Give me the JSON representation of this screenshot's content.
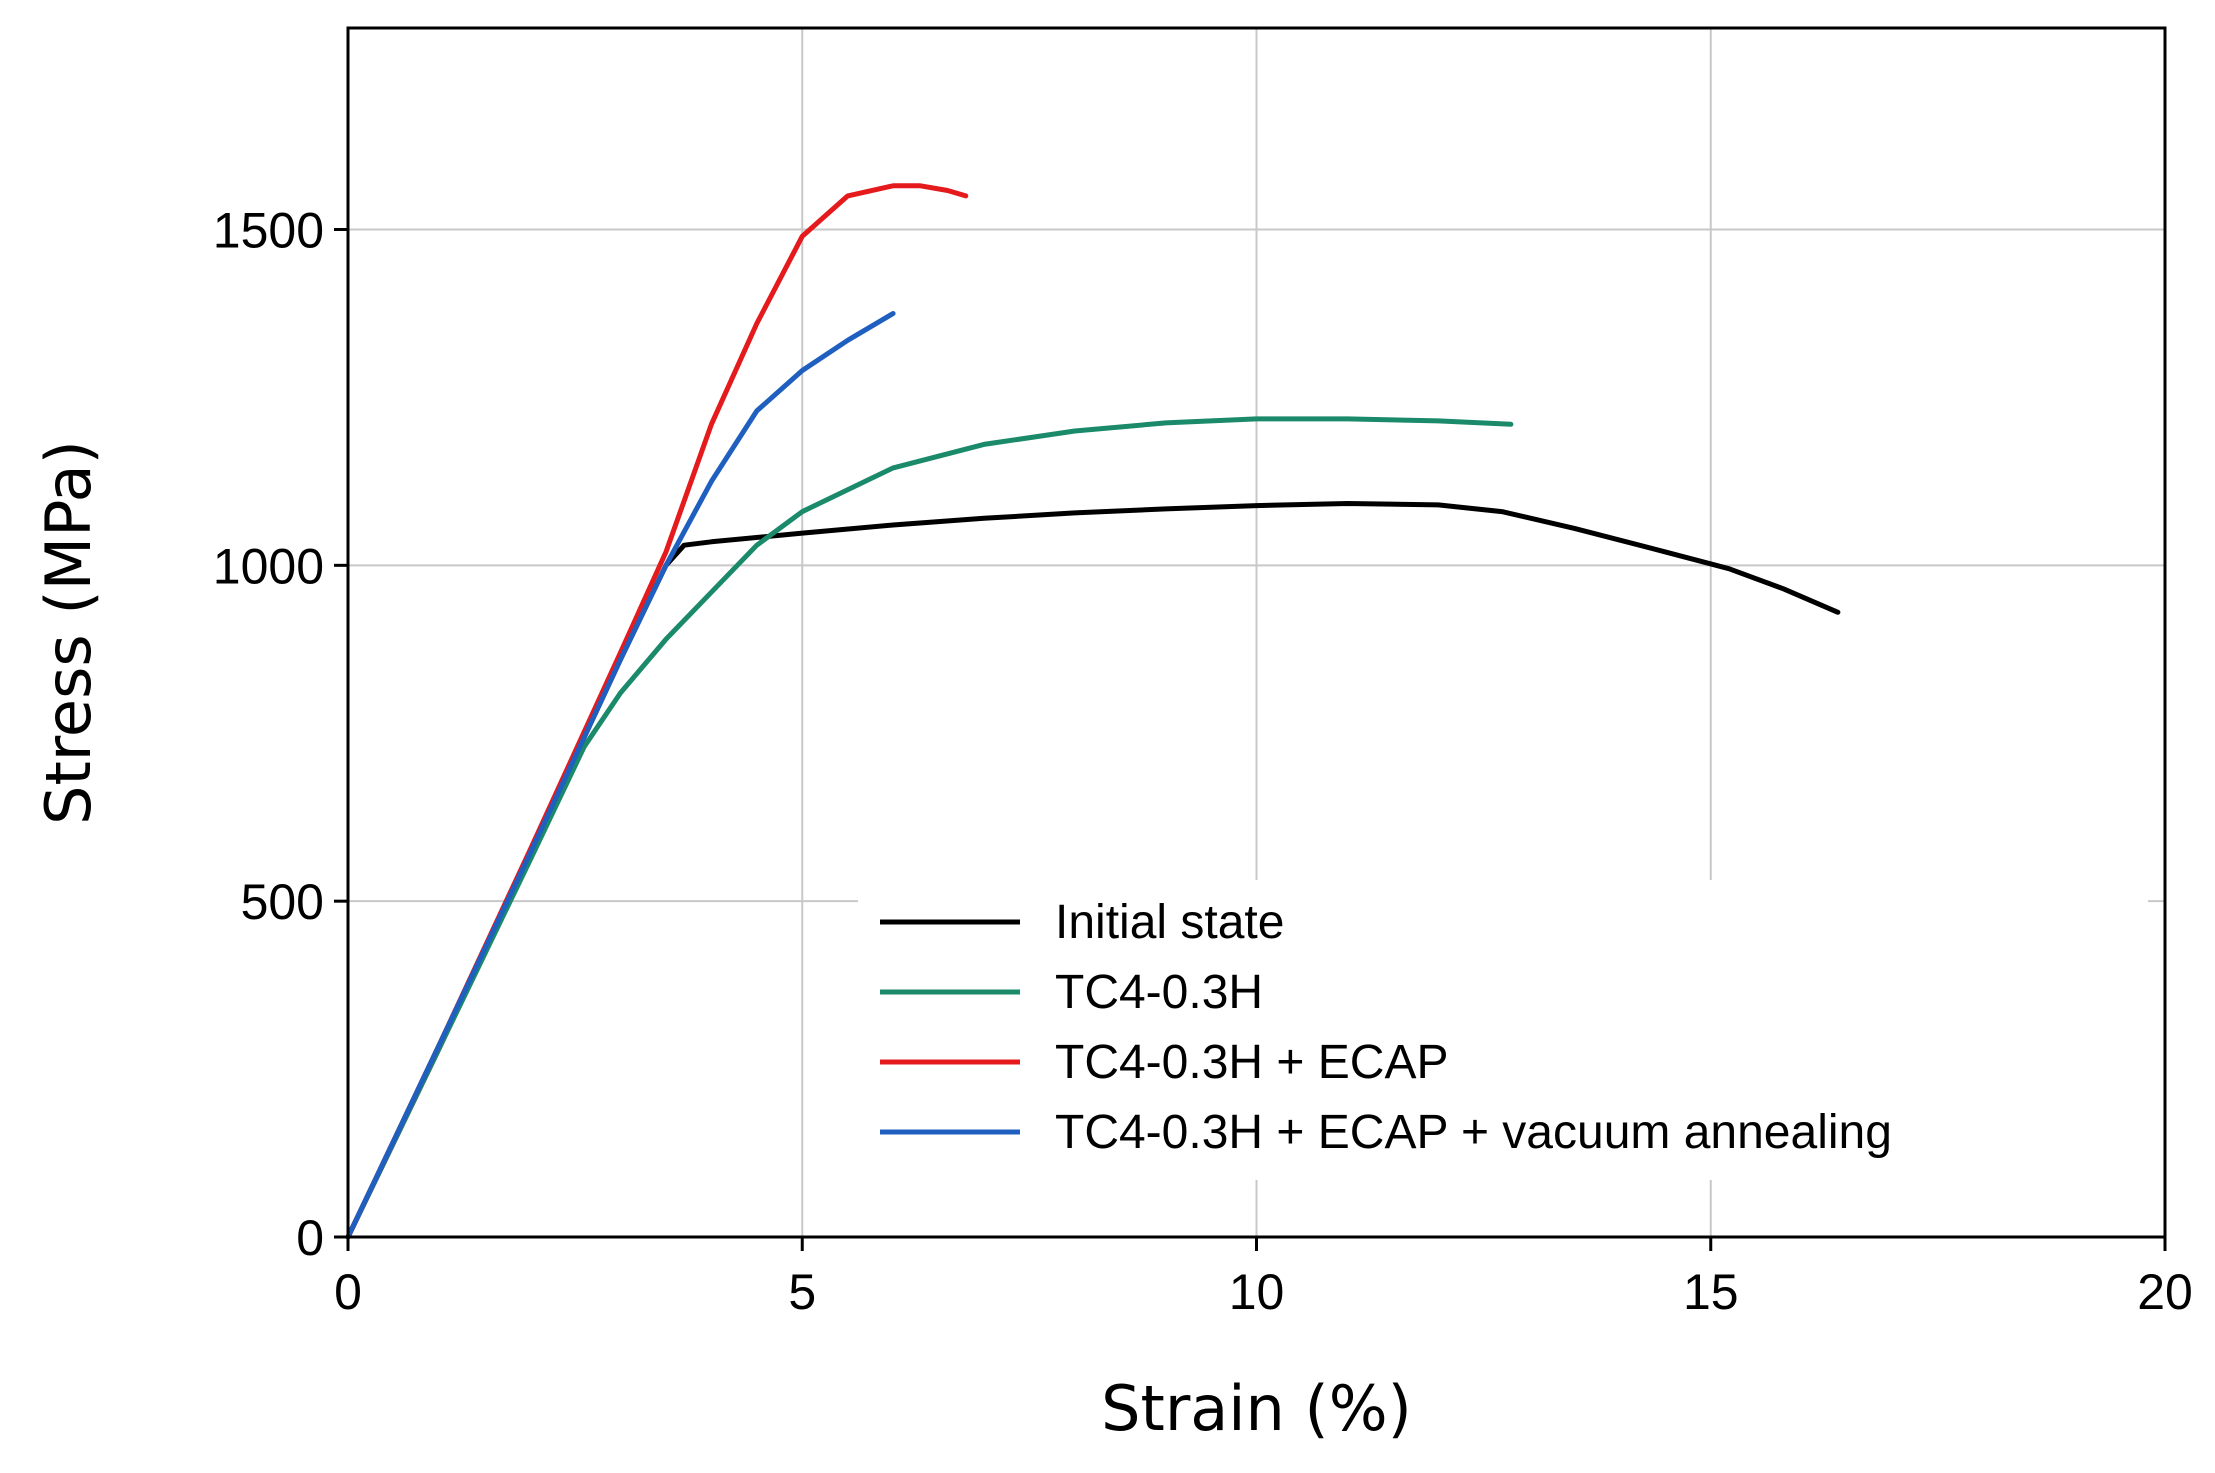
{
  "chart_data": {
    "type": "line",
    "xlabel": "Strain (%)",
    "ylabel": "Stress (MPa)",
    "xlim": [
      0,
      20
    ],
    "ylim": [
      0,
      1800
    ],
    "xticks": [
      "0",
      "5",
      "10",
      "15",
      "20"
    ],
    "yticks": [
      "0",
      "500",
      "1000",
      "1500"
    ],
    "grid": true,
    "legend_position": "bottom-right",
    "series": [
      {
        "name": "Initial state",
        "color": "#000000",
        "points": [
          [
            0,
            0
          ],
          [
            1,
            280
          ],
          [
            2,
            570
          ],
          [
            3,
            860
          ],
          [
            3.5,
            1000
          ],
          [
            3.7,
            1030
          ],
          [
            4,
            1035
          ],
          [
            5,
            1048
          ],
          [
            6,
            1060
          ],
          [
            7,
            1070
          ],
          [
            8,
            1078
          ],
          [
            9,
            1084
          ],
          [
            10,
            1089
          ],
          [
            11,
            1092
          ],
          [
            12,
            1090
          ],
          [
            12.7,
            1080
          ],
          [
            13.5,
            1055
          ],
          [
            14.5,
            1020
          ],
          [
            15.2,
            995
          ],
          [
            15.8,
            965
          ],
          [
            16.4,
            930
          ]
        ]
      },
      {
        "name": "TC4-0.3H",
        "color": "#1a8a6a",
        "points": [
          [
            0,
            0
          ],
          [
            1,
            280
          ],
          [
            2,
            560
          ],
          [
            2.6,
            730
          ],
          [
            3,
            810
          ],
          [
            3.5,
            890
          ],
          [
            4,
            960
          ],
          [
            4.5,
            1030
          ],
          [
            5,
            1080
          ],
          [
            6,
            1145
          ],
          [
            7,
            1180
          ],
          [
            8,
            1200
          ],
          [
            9,
            1212
          ],
          [
            10,
            1218
          ],
          [
            11,
            1218
          ],
          [
            12,
            1215
          ],
          [
            12.8,
            1210
          ]
        ]
      },
      {
        "name": "TC4-0.3H + ECAP",
        "color": "#e41a1c",
        "points": [
          [
            0,
            0
          ],
          [
            1,
            285
          ],
          [
            2,
            575
          ],
          [
            3,
            870
          ],
          [
            3.5,
            1020
          ],
          [
            4,
            1210
          ],
          [
            4.5,
            1360
          ],
          [
            5,
            1490
          ],
          [
            5.5,
            1550
          ],
          [
            6,
            1565
          ],
          [
            6.3,
            1565
          ],
          [
            6.6,
            1558
          ],
          [
            6.8,
            1550
          ]
        ]
      },
      {
        "name": "TC4-0.3H + ECAP + vacuum annealing",
        "color": "#1f5fbf",
        "points": [
          [
            0,
            0
          ],
          [
            1,
            285
          ],
          [
            2,
            570
          ],
          [
            3,
            860
          ],
          [
            3.5,
            1000
          ],
          [
            4,
            1125
          ],
          [
            4.5,
            1230
          ],
          [
            5,
            1290
          ],
          [
            5.5,
            1335
          ],
          [
            6,
            1375
          ]
        ]
      }
    ]
  }
}
